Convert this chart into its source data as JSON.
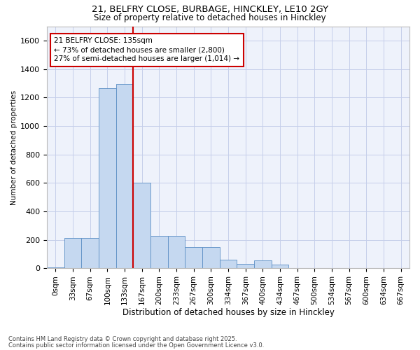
{
  "title1": "21, BELFRY CLOSE, BURBAGE, HINCKLEY, LE10 2GY",
  "title2": "Size of property relative to detached houses in Hinckley",
  "xlabel": "Distribution of detached houses by size in Hinckley",
  "ylabel": "Number of detached properties",
  "bar_values": [
    5,
    215,
    215,
    1265,
    1295,
    600,
    230,
    230,
    150,
    150,
    60,
    30,
    55,
    25,
    0,
    0,
    0,
    0,
    0,
    0,
    0
  ],
  "bar_labels": [
    "0sqm",
    "33sqm",
    "67sqm",
    "100sqm",
    "133sqm",
    "167sqm",
    "200sqm",
    "233sqm",
    "267sqm",
    "300sqm",
    "334sqm",
    "367sqm",
    "400sqm",
    "434sqm",
    "467sqm",
    "500sqm",
    "534sqm",
    "567sqm",
    "600sqm",
    "634sqm",
    "667sqm"
  ],
  "bar_color": "#c5d8f0",
  "bar_edge_color": "#5b8ec4",
  "vline_color": "#cc0000",
  "vline_x": 4.5,
  "annotation_line1": "21 BELFRY CLOSE: 135sqm",
  "annotation_line2": "← 73% of detached houses are smaller (2,800)",
  "annotation_line3": "27% of semi-detached houses are larger (1,014) →",
  "annotation_box_edge_color": "#cc0000",
  "ylim_max": 1700,
  "yticks": [
    0,
    200,
    400,
    600,
    800,
    1000,
    1200,
    1400,
    1600
  ],
  "footer1": "Contains HM Land Registry data © Crown copyright and database right 2025.",
  "footer2": "Contains public sector information licensed under the Open Government Licence v3.0.",
  "bg_color": "#eef2fb",
  "grid_color": "#c5ceea"
}
